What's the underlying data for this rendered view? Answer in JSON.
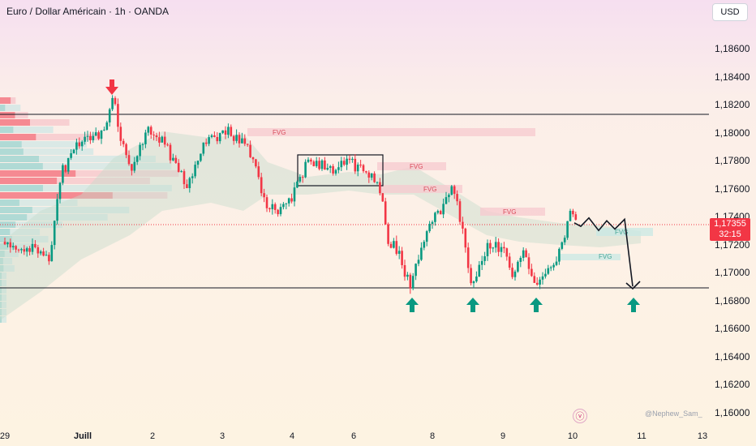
{
  "header": {
    "title": "Euro / Dollar Américain · 1h · OANDA",
    "currency": "USD"
  },
  "price_axis": {
    "labels": [
      "1,18600",
      "1,18400",
      "1,18200",
      "1,18000",
      "1,17800",
      "1,17600",
      "1,17400",
      "1,17200",
      "1,17000",
      "1,16800",
      "1,16600",
      "1,16400",
      "1,16200",
      "1,16000"
    ],
    "values": [
      1.186,
      1.184,
      1.182,
      1.18,
      1.178,
      1.176,
      1.174,
      1.172,
      1.17,
      1.168,
      1.166,
      1.164,
      1.162,
      1.16
    ]
  },
  "current_price": {
    "price": "1,17355",
    "countdown": "32:15",
    "value": 1.17355
  },
  "watermark": "@Nephew_Sam_",
  "colors": {
    "up": "#089981",
    "down": "#f23645",
    "fvg": "#f7c9cf",
    "cloud": "#c5dccb"
  },
  "icons": {
    "logo": "tradingview-icon",
    "signals": [
      "arrow-down-icon",
      "arrow-up-icon"
    ]
  },
  "chart_data": {
    "type": "candlestick",
    "title": "Euro / Dollar Américain · 1h · OANDA",
    "instrument": "EUR/USD",
    "timeframe": "1h",
    "x_tick_labels": [
      "29",
      "Juill",
      "2",
      "3",
      "4",
      "6",
      "8",
      "9",
      "10",
      "11",
      "13"
    ],
    "y_range": [
      1.1595,
      1.1895
    ],
    "horizontal_levels": [
      1.1814,
      1.169
    ],
    "fvg_labels": [
      "FVG",
      "FVG",
      "FVG",
      "FVG",
      "FVG",
      "FVG"
    ],
    "key_points": [
      {
        "label": "29 open",
        "value": 1.1722
      },
      {
        "label": "Juill high",
        "value": 1.1828
      },
      {
        "label": "2",
        "value": 1.18
      },
      {
        "label": "3",
        "value": 1.1805
      },
      {
        "label": "range high",
        "value": 1.1785
      },
      {
        "label": "range low",
        "value": 1.1764
      },
      {
        "label": "8 low",
        "value": 1.169
      },
      {
        "label": "9 low",
        "value": 1.169
      },
      {
        "label": "9 close",
        "value": 1.17
      },
      {
        "label": "10 high",
        "value": 1.1745
      },
      {
        "label": "last",
        "value": 1.17355
      }
    ],
    "projection": [
      1.17355,
      1.1733,
      1.1739,
      1.173,
      1.1737,
      1.1731,
      1.1738,
      1.169
    ],
    "signals": [
      {
        "type": "sell",
        "value": 1.1828
      },
      {
        "type": "buy",
        "value": 1.169
      },
      {
        "type": "buy",
        "value": 1.169
      },
      {
        "type": "buy",
        "value": 1.169
      },
      {
        "type": "buy",
        "value": 1.169
      }
    ]
  }
}
